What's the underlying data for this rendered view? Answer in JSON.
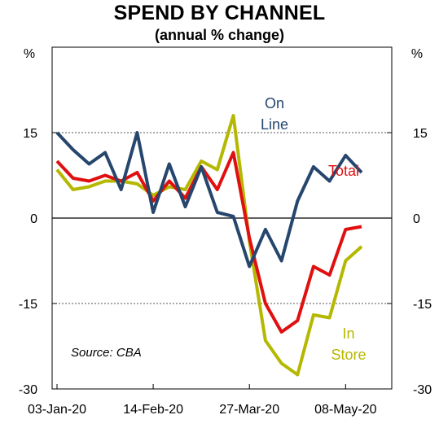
{
  "chart_data": {
    "type": "line",
    "title": "SPEND BY CHANNEL",
    "subtitle": "(annual % change)",
    "y_unit_left": "%",
    "y_unit_right": "%",
    "ylim": [
      -30,
      30
    ],
    "yticks": [
      15,
      0,
      -15,
      -30
    ],
    "ytick_labels": [
      "15",
      "0",
      "-15",
      "-30"
    ],
    "x_tick_labels": [
      "03-Jan-20",
      "14-Feb-20",
      "27-Mar-20",
      "08-May-20"
    ],
    "x_tick_index": [
      0,
      6,
      12,
      18
    ],
    "x_count": 21,
    "grid": "dashed at ±15",
    "source": "Source: CBA",
    "series": [
      {
        "name": "On Line",
        "color": "#26466e",
        "label_lines": [
          "On",
          "Line"
        ],
        "values": [
          15,
          12,
          9.5,
          11.5,
          5,
          15,
          1,
          9.5,
          2,
          9,
          1,
          0.3,
          -8.5,
          -2,
          -7.5,
          3,
          9,
          6.5,
          11,
          8
        ]
      },
      {
        "name": "Total",
        "color": "#e01010",
        "label_lines": [
          "Total"
        ],
        "values": [
          10,
          7,
          6.5,
          7.5,
          6.5,
          8,
          3,
          6.5,
          3.5,
          9,
          5,
          11.5,
          -3.5,
          -15,
          -20,
          -18,
          -8.5,
          -10,
          -2,
          -1.5
        ]
      },
      {
        "name": "In Store",
        "color": "#b5b800",
        "label_lines": [
          "In",
          "Store"
        ],
        "values": [
          8.5,
          5,
          5.5,
          6.5,
          6.5,
          6,
          4,
          5.5,
          5,
          10,
          8.5,
          18,
          -4,
          -21.5,
          -25.5,
          -27.5,
          -17,
          -17.5,
          -7.5,
          -5
        ]
      }
    ]
  }
}
